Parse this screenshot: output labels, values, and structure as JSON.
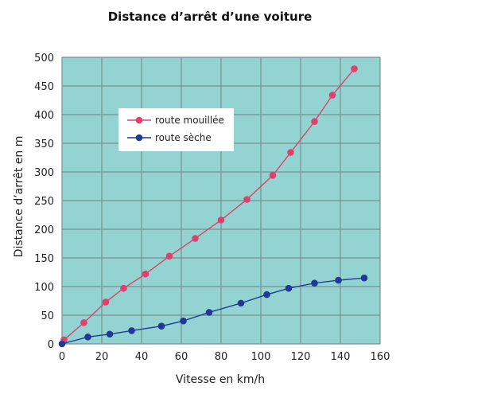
{
  "chart_data": {
    "type": "line",
    "title": "Distance d’arrêt d’une voiture",
    "xlabel": "Vitesse en km/h",
    "ylabel": "Distance d’arrêt en m",
    "xlim": [
      0,
      160
    ],
    "ylim": [
      0,
      500
    ],
    "x_ticks": [
      "0",
      "20",
      "40",
      "60",
      "80",
      "100",
      "120",
      "140",
      "160"
    ],
    "y_ticks": [
      "0",
      "50",
      "100",
      "150",
      "200",
      "250",
      "300",
      "350",
      "400",
      "450",
      "500"
    ],
    "grid": true,
    "legend_position": "top-left",
    "plot_background": "#93d4d2",
    "series": [
      {
        "name": "route mouillée",
        "color": "#e0406e",
        "x": [
          1,
          11,
          22,
          31,
          42,
          54,
          67,
          80,
          93,
          106,
          115,
          127,
          136,
          147
        ],
        "y": [
          7,
          37,
          73,
          97,
          122,
          153,
          184,
          216,
          252,
          294,
          334,
          388,
          434,
          480
        ]
      },
      {
        "name": "route sèche",
        "color": "#1f3a93",
        "x": [
          0,
          13,
          24,
          35,
          50,
          61,
          74,
          90,
          103,
          114,
          127,
          139,
          152
        ],
        "y": [
          0,
          12,
          17,
          23,
          31,
          40,
          55,
          71,
          86,
          97,
          106,
          111,
          115
        ]
      }
    ]
  }
}
